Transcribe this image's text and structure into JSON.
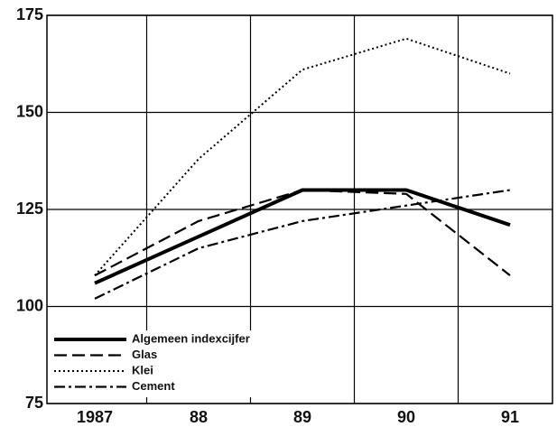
{
  "chart_data": {
    "type": "line",
    "categories": [
      "1987",
      "88",
      "89",
      "90",
      "91"
    ],
    "series": [
      {
        "name": "Algemeen indexcijfer",
        "color": "#000000",
        "dash": "solid",
        "values": [
          106,
          118,
          130,
          130,
          121
        ]
      },
      {
        "name": "Glas",
        "color": "#000000",
        "dash": "dashed",
        "values": [
          108,
          122,
          130,
          129,
          108
        ]
      },
      {
        "name": "Klei",
        "color": "#000000",
        "dash": "dotted",
        "values": [
          108,
          138,
          161,
          169,
          160
        ]
      },
      {
        "name": "Cement",
        "color": "#000000",
        "dash": "dashdot",
        "values": [
          102,
          115,
          122,
          126,
          130
        ]
      }
    ],
    "ylim": [
      75,
      175
    ],
    "yticks": [
      75,
      100,
      125,
      150,
      175
    ],
    "grid": true,
    "legend": "lower left"
  }
}
